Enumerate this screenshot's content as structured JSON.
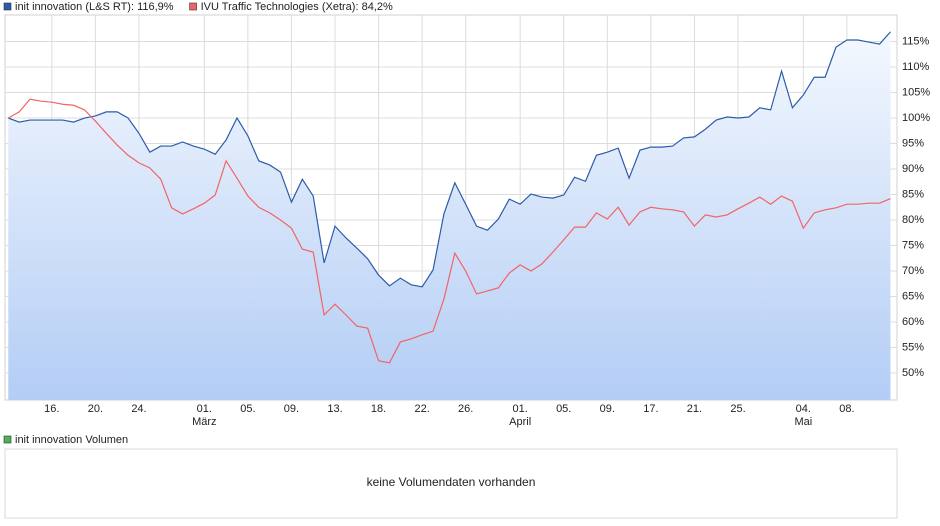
{
  "chart_data": [
    {
      "type": "line",
      "x": [
        0,
        1,
        2,
        3,
        4,
        5,
        6,
        7,
        8,
        9,
        10,
        11,
        12,
        13,
        14,
        15,
        16,
        17,
        18,
        19,
        20,
        21,
        22,
        23,
        24,
        25,
        26,
        27,
        28,
        29,
        30,
        31,
        32,
        33,
        34,
        35,
        36,
        37,
        38,
        39,
        40,
        41,
        42,
        43,
        44,
        45,
        46,
        47,
        48,
        49,
        50,
        51,
        52,
        53,
        54,
        55,
        56,
        57,
        58,
        59,
        60,
        61,
        62,
        63,
        64,
        65,
        66,
        67,
        68,
        69,
        70,
        71,
        72,
        73,
        74,
        75,
        76,
        77,
        78,
        79,
        80,
        81
      ],
      "xlim": [
        -0.3,
        81.6
      ],
      "xticks": [
        {
          "value": 4,
          "label": "16."
        },
        {
          "value": 8,
          "label": "20."
        },
        {
          "value": 12,
          "label": "24."
        },
        {
          "value": 18,
          "label": "01."
        },
        {
          "value": 22,
          "label": "05."
        },
        {
          "value": 26,
          "label": "09."
        },
        {
          "value": 30,
          "label": "13."
        },
        {
          "value": 34,
          "label": "18."
        },
        {
          "value": 38,
          "label": "22."
        },
        {
          "value": 42,
          "label": "26."
        },
        {
          "value": 47,
          "label": "01."
        },
        {
          "value": 51,
          "label": "05."
        },
        {
          "value": 55,
          "label": "09."
        },
        {
          "value": 59,
          "label": "17."
        },
        {
          "value": 63,
          "label": "21."
        },
        {
          "value": 67,
          "label": "25."
        },
        {
          "value": 73,
          "label": "04."
        },
        {
          "value": 77,
          "label": "08."
        }
      ],
      "xmonths": [
        {
          "value": 18,
          "label": "März"
        },
        {
          "value": 47,
          "label": "April"
        },
        {
          "value": 73,
          "label": "Mai"
        }
      ],
      "ylim": [
        44.71,
        120.2
      ],
      "yticks": [
        {
          "value": 50,
          "label": "50%"
        },
        {
          "value": 55,
          "label": "55%"
        },
        {
          "value": 60,
          "label": "60%"
        },
        {
          "value": 65,
          "label": "65%"
        },
        {
          "value": 70,
          "label": "70%"
        },
        {
          "value": 75,
          "label": "75%"
        },
        {
          "value": 80,
          "label": "80%"
        },
        {
          "value": 85,
          "label": "85%"
        },
        {
          "value": 90,
          "label": "90%"
        },
        {
          "value": 95,
          "label": "95%"
        },
        {
          "value": 100,
          "label": "100%"
        },
        {
          "value": 105,
          "label": "105%"
        },
        {
          "value": 110,
          "label": "110%"
        },
        {
          "value": 115,
          "label": "115%"
        }
      ],
      "grid": true,
      "series": [
        {
          "name": "init innovation (L&S RT): 116,9%",
          "color": "#2b5ca8",
          "area": true,
          "values": [
            100,
            99.2,
            99.6,
            99.6,
            99.6,
            99.6,
            99.2,
            100,
            100.4,
            101.2,
            101.2,
            100,
            97,
            93.3,
            94.5,
            94.5,
            95.3,
            94.5,
            93.9,
            92.9,
            95.7,
            100,
            96.5,
            91.6,
            90.8,
            89.4,
            83.5,
            88,
            84.7,
            71.6,
            78.8,
            76.5,
            74.5,
            72.4,
            69.2,
            67.1,
            68.6,
            67.3,
            66.9,
            70.2,
            81.2,
            87.3,
            83.1,
            78.8,
            78,
            80.2,
            84.1,
            83.1,
            85.1,
            84.5,
            84.3,
            84.9,
            88.4,
            87.6,
            92.7,
            93.3,
            94.1,
            88.2,
            93.7,
            94.3,
            94.3,
            94.5,
            96.1,
            96.3,
            97.8,
            99.6,
            100.2,
            100,
            100.2,
            102,
            101.6,
            109.2,
            102,
            104.5,
            108,
            108,
            113.9,
            115.3,
            115.3,
            114.9,
            114.5,
            116.9
          ]
        },
        {
          "name": "IVU Traffic Technologies (Xetra): 84,2%",
          "color": "#f26464",
          "area": false,
          "values": [
            100,
            101.2,
            103.7,
            103.3,
            103.1,
            102.7,
            102.5,
            101.6,
            99.4,
            97,
            94.7,
            92.7,
            91.2,
            90.2,
            88,
            82.4,
            81.2,
            82.2,
            83.3,
            84.9,
            91.6,
            88.2,
            84.7,
            82.5,
            81.4,
            80,
            78.4,
            74.3,
            73.7,
            61.4,
            63.5,
            61.4,
            59.2,
            58.8,
            52.4,
            52,
            56.1,
            56.7,
            57.5,
            58.2,
            64.5,
            73.5,
            70,
            65.5,
            66.1,
            66.7,
            69.6,
            71.2,
            70,
            71.4,
            73.7,
            76.1,
            78.6,
            78.6,
            81.4,
            80.2,
            82.5,
            79,
            81.6,
            82.5,
            82.2,
            82,
            81.6,
            78.8,
            81,
            80.6,
            81,
            82.2,
            83.3,
            84.5,
            83.1,
            84.7,
            83.7,
            78.4,
            81.4,
            82,
            82.4,
            83.1,
            83.1,
            83.3,
            83.3,
            84.2
          ]
        }
      ]
    },
    {
      "type": "bar",
      "series": [
        {
          "name": "init innovation Volumen",
          "color": "#4db34d",
          "values": []
        }
      ],
      "message": "keine Volumendaten vorhanden"
    }
  ]
}
